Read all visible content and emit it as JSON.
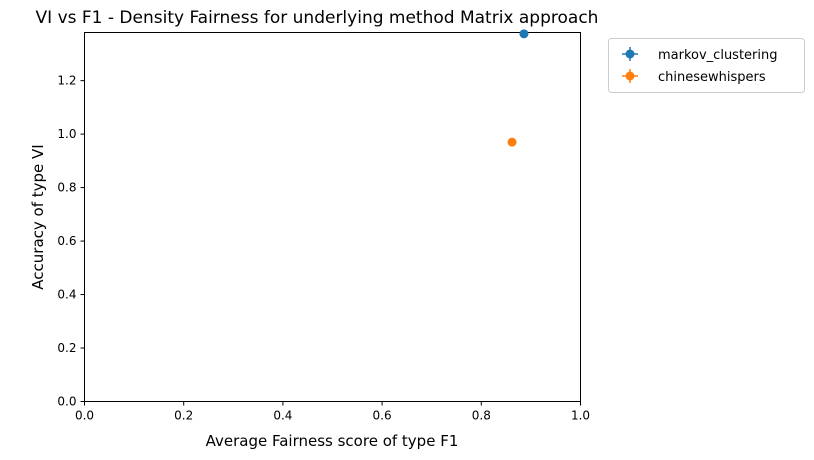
{
  "chart_data": {
    "type": "scatter",
    "title": "VI vs F1 - Density Fairness for underlying method Matrix approach",
    "xlabel": "Average Fairness score of type F1",
    "ylabel": "Accuracy of type VI",
    "xlim": [
      0.0,
      1.0
    ],
    "ylim": [
      0.0,
      1.38
    ],
    "xticks": [
      "0.0",
      "0.2",
      "0.4",
      "0.6",
      "0.8",
      "1.0"
    ],
    "yticks": [
      "0.0",
      "0.2",
      "0.4",
      "0.6",
      "0.8",
      "1.0",
      "1.2"
    ],
    "grid": false,
    "legend_position": "outside-upper-right",
    "series": [
      {
        "name": "markov_clustering",
        "color": "#1f77b4",
        "x": [
          0.886
        ],
        "y": [
          1.375
        ]
      },
      {
        "name": "chinesewhispers",
        "color": "#ff7f0e",
        "x": [
          0.862
        ],
        "y": [
          0.97
        ]
      }
    ]
  }
}
